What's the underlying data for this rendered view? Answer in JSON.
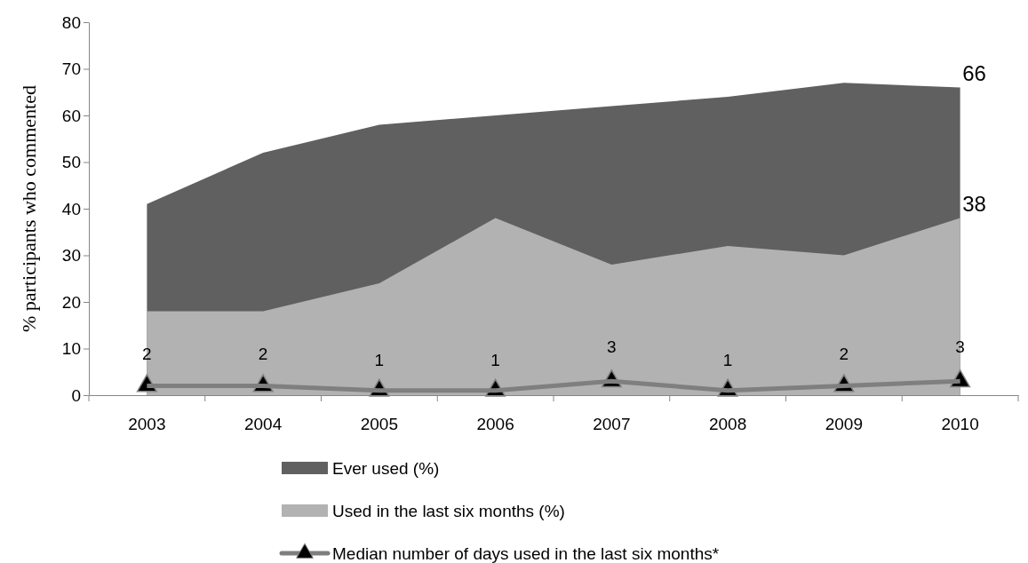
{
  "chart_data": {
    "type": "area",
    "ylabel": "% participants who commented",
    "categories": [
      "2003",
      "2004",
      "2005",
      "2006",
      "2007",
      "2008",
      "2009",
      "2010"
    ],
    "series": [
      {
        "name": "Ever used (%)",
        "color": "#606060",
        "values": [
          41,
          52,
          58,
          60,
          62,
          64,
          67,
          66
        ],
        "value_labels": [
          null,
          null,
          null,
          null,
          null,
          null,
          null,
          "66"
        ]
      },
      {
        "name": "Used in the last six months (%)",
        "color": "#b2b2b2",
        "values": [
          18,
          18,
          24,
          38,
          28,
          32,
          30,
          38
        ],
        "value_labels": [
          null,
          null,
          null,
          null,
          null,
          null,
          null,
          "38"
        ]
      },
      {
        "name": "Median number of days used in the last six months*",
        "type": "line",
        "color": "#7f7f7f",
        "marker": "triangle",
        "values": [
          2,
          2,
          1,
          1,
          3,
          1,
          2,
          3
        ],
        "value_labels": [
          "2",
          "2",
          "1",
          "1",
          "3",
          "1",
          "2",
          "3"
        ]
      }
    ],
    "ylim": [
      0,
      80
    ],
    "yticks": [
      0,
      10,
      20,
      30,
      40,
      50,
      60,
      70,
      80
    ],
    "grid": false,
    "legend": "bottom"
  }
}
